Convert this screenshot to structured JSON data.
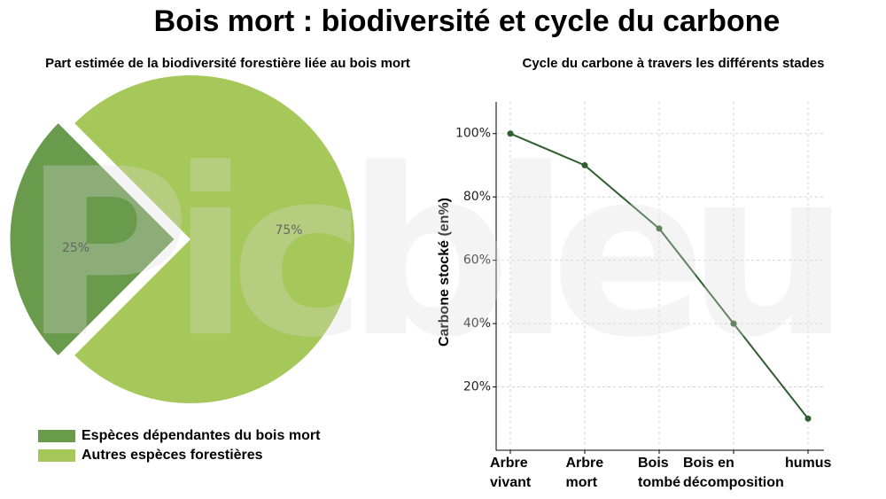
{
  "title": "Bois mort : biodiversité et cycle du carbone",
  "watermark": "Picbleu",
  "chart_data": [
    {
      "type": "pie",
      "title": "Part estimée de la biodiversité forestière liée au bois mort",
      "categories": [
        "Espèces dépendantes du bois mort",
        "Autres espèces forestières"
      ],
      "values": [
        25,
        75
      ],
      "value_labels": [
        "25%",
        "75%"
      ],
      "colors": [
        "#6a9a4c",
        "#a6c85a"
      ],
      "legend": "lower left"
    },
    {
      "type": "line",
      "title": "Cycle du carbone à travers les différents stades",
      "ylabel": "Carbone stocké (en%)",
      "categories": [
        "Arbre\nvivant",
        "Arbre\nmort",
        "Bois\ntombé",
        "Bois en\ndécomposition",
        "humus"
      ],
      "series": [
        {
          "name": "Carbone stocké",
          "color": "#2f5f2f",
          "values": [
            100,
            90,
            70,
            40,
            10
          ]
        }
      ],
      "ylim": [
        0,
        110
      ],
      "yticks": [
        {
          "value": 20,
          "label": "20%"
        },
        {
          "value": 40,
          "label": "40%"
        },
        {
          "value": 60,
          "label": "60%"
        },
        {
          "value": 80,
          "label": "80%"
        },
        {
          "value": 100,
          "label": "100%"
        }
      ],
      "grid": true
    }
  ]
}
